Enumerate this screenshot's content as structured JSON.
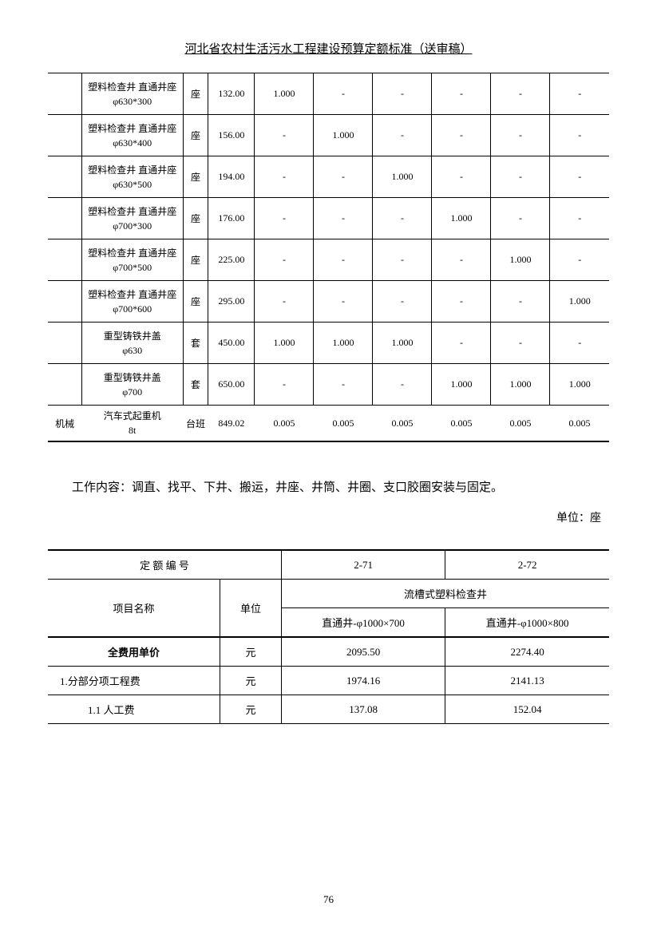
{
  "title": "河北省农村生活污水工程建设预算定额标准（送审稿）",
  "table1_rows": [
    {
      "cat": "",
      "name": "塑料检查井 直通井座 φ630*300",
      "unit": "座",
      "price": "132.00",
      "v": [
        "1.000",
        "-",
        "-",
        "-",
        "-",
        "-"
      ]
    },
    {
      "cat": "",
      "name": "塑料检查井 直通井座 φ630*400",
      "unit": "座",
      "price": "156.00",
      "v": [
        "-",
        "1.000",
        "-",
        "-",
        "-",
        "-"
      ]
    },
    {
      "cat": "",
      "name": "塑料检查井 直通井座 φ630*500",
      "unit": "座",
      "price": "194.00",
      "v": [
        "-",
        "-",
        "1.000",
        "-",
        "-",
        "-"
      ]
    },
    {
      "cat": "",
      "name": "塑料检查井 直通井座 φ700*300",
      "unit": "座",
      "price": "176.00",
      "v": [
        "-",
        "-",
        "-",
        "1.000",
        "-",
        "-"
      ]
    },
    {
      "cat": "",
      "name": "塑料检查井 直通井座 φ700*500",
      "unit": "座",
      "price": "225.00",
      "v": [
        "-",
        "-",
        "-",
        "-",
        "1.000",
        "-"
      ]
    },
    {
      "cat": "",
      "name": "塑料检查井 直通井座 φ700*600",
      "unit": "座",
      "price": "295.00",
      "v": [
        "-",
        "-",
        "-",
        "-",
        "-",
        "1.000"
      ]
    },
    {
      "cat": "",
      "name": "重型铸铁井盖 φ630",
      "unit": "套",
      "price": "450.00",
      "v": [
        "1.000",
        "1.000",
        "1.000",
        "-",
        "-",
        "-"
      ]
    },
    {
      "cat": "",
      "name": "重型铸铁井盖 φ700",
      "unit": "套",
      "price": "650.00",
      "v": [
        "-",
        "-",
        "-",
        "1.000",
        "1.000",
        "1.000"
      ]
    },
    {
      "cat": "机械",
      "name": "汽车式起重机 8t",
      "unit": "台班",
      "price": "849.02",
      "v": [
        "0.005",
        "0.005",
        "0.005",
        "0.005",
        "0.005",
        "0.005"
      ]
    }
  ],
  "work_content": "工作内容：调直、找平、下井、搬运，井座、井筒、井圈、支口胶圈安装与固定。",
  "unit_label": "单位：座",
  "table2": {
    "header_code": "定 额 编 号",
    "codes": [
      "2-71",
      "2-72"
    ],
    "item_name_label": "项目名称",
    "unit_label": "单位",
    "category": "流槽式塑料检查井",
    "subcategories": [
      "直通井-φ1000×700",
      "直通井-φ1000×800"
    ],
    "rows": [
      {
        "label": "全费用单价",
        "unit": "元",
        "v": [
          "2095.50",
          "2274.40"
        ],
        "bold": true,
        "indent": 0
      },
      {
        "label": "1.分部分项工程费",
        "unit": "元",
        "v": [
          "1974.16",
          "2141.13"
        ],
        "bold": false,
        "indent": 1
      },
      {
        "label": "1.1 人工费",
        "unit": "元",
        "v": [
          "137.08",
          "152.04"
        ],
        "bold": false,
        "indent": 2
      }
    ]
  },
  "page_number": "76"
}
